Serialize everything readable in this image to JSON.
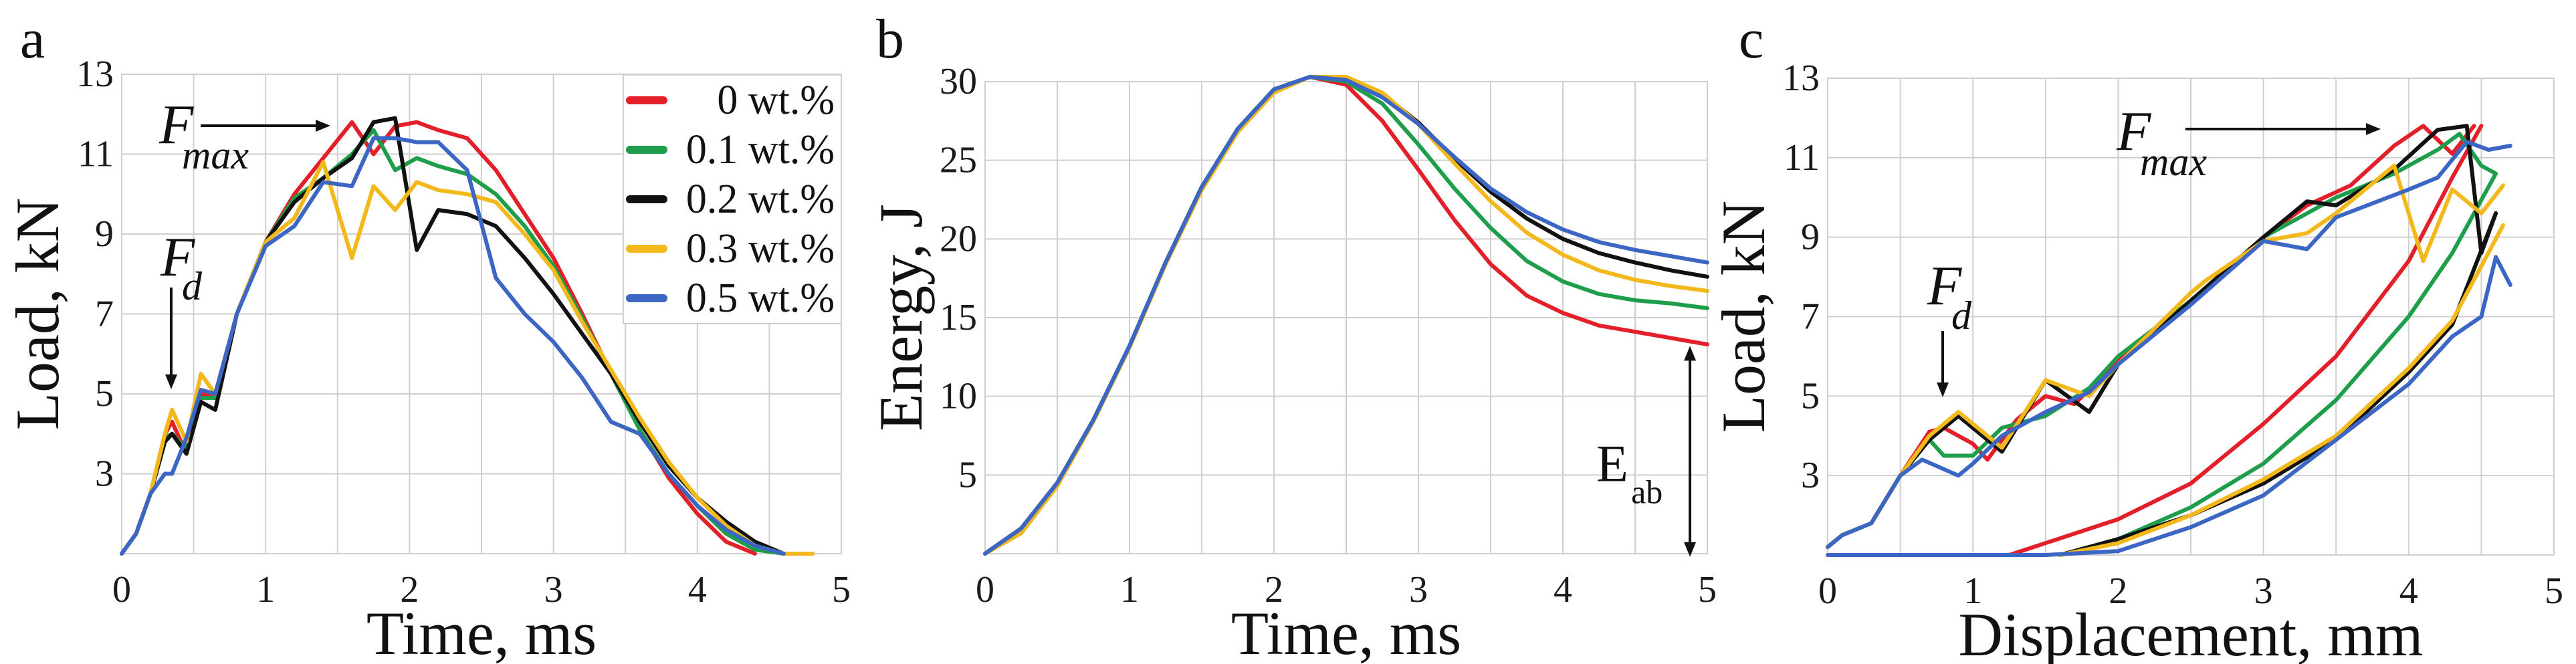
{
  "colors": {
    "0 wt.%": "#E3202A",
    "0.1 wt.%": "#1E9E4A",
    "0.2 wt.%": "#111111",
    "0.3 wt.%": "#F2B81C",
    "0.5 wt.%": "#3C66C4",
    "grid": "#cfcfcf"
  },
  "legend": {
    "items": [
      {
        "label": "0 wt.%",
        "color": "#E3202A"
      },
      {
        "label": "0.1 wt.%",
        "color": "#1E9E4A"
      },
      {
        "label": "0.2 wt.%",
        "color": "#111111"
      },
      {
        "label": "0.3 wt.%",
        "color": "#F2B81C"
      },
      {
        "label": "0.5 wt.%",
        "color": "#3C66C4"
      }
    ]
  },
  "panels": {
    "a": {
      "label": "a",
      "xlabel": "Time, ms",
      "ylabel": "Load, kN",
      "fmax_main": "F",
      "fmax_sub": "max",
      "fd_main": "F",
      "fd_sub": "d"
    },
    "b": {
      "label": "b",
      "xlabel": "Time, ms",
      "ylabel": "Energy, J",
      "eab_main": "E",
      "eab_sub": "ab"
    },
    "c": {
      "label": "c",
      "xlabel": "Displacement, mm",
      "ylabel": "Load, kN",
      "fmax_main": "F",
      "fmax_sub": "max",
      "fd_main": "F",
      "fd_sub": "d"
    }
  },
  "chart_data": [
    {
      "panel": "a",
      "type": "line",
      "title": "",
      "xlabel": "Time, ms",
      "ylabel": "Load, kN",
      "xlim": [
        0,
        5
      ],
      "ylim": [
        1,
        13
      ],
      "xticks": [
        0,
        1,
        2,
        3,
        4,
        5
      ],
      "yticks": [
        3,
        5,
        7,
        9,
        11,
        13
      ],
      "grid": true,
      "legend_position": "upper right (inside)",
      "annotations": [
        "F_max (arrow pointing to peak ~11.8 kN at ~1.6 ms)",
        "F_d (arrow pointing down to ~4.4 kN at ~0.35 ms)"
      ],
      "x": [
        0,
        0.1,
        0.2,
        0.3,
        0.35,
        0.45,
        0.55,
        0.65,
        0.8,
        1.0,
        1.2,
        1.4,
        1.6,
        1.75,
        1.9,
        2.05,
        2.2,
        2.4,
        2.6,
        2.8,
        3.0,
        3.2,
        3.4,
        3.6,
        3.8,
        4.0,
        4.2,
        4.4,
        4.6,
        4.8,
        5.0
      ],
      "series": [
        {
          "name": "0 wt.%",
          "values": [
            1.0,
            1.5,
            2.5,
            4.0,
            4.3,
            3.5,
            5.0,
            5.0,
            7.0,
            8.8,
            10.0,
            10.9,
            11.8,
            11.0,
            11.7,
            11.8,
            11.6,
            11.4,
            10.6,
            9.5,
            8.4,
            7.0,
            5.5,
            4.1,
            2.9,
            2.0,
            1.3,
            1.0,
            null,
            null,
            1.1
          ]
        },
        {
          "name": "0.1 wt.%",
          "values": [
            1.0,
            1.5,
            2.5,
            3.9,
            4.0,
            3.6,
            4.9,
            4.9,
            7.0,
            8.8,
            9.9,
            10.4,
            11.0,
            11.6,
            10.6,
            10.9,
            10.7,
            10.5,
            10.0,
            9.2,
            8.2,
            6.9,
            5.5,
            4.1,
            3.0,
            2.2,
            1.5,
            1.1,
            1.0,
            null,
            null
          ]
        },
        {
          "name": "0.2 wt.%",
          "values": [
            1.0,
            1.5,
            2.5,
            3.8,
            4.0,
            3.5,
            4.8,
            4.6,
            7.0,
            8.8,
            9.8,
            10.4,
            10.9,
            11.8,
            11.9,
            8.6,
            9.6,
            9.5,
            9.2,
            8.4,
            7.5,
            6.5,
            5.5,
            4.3,
            3.2,
            2.4,
            1.8,
            1.3,
            1.0,
            1.0,
            null
          ]
        },
        {
          "name": "0.3 wt.%",
          "values": [
            1.0,
            1.5,
            2.5,
            4.0,
            4.6,
            3.8,
            5.5,
            5.0,
            7.0,
            8.8,
            9.4,
            10.8,
            8.4,
            10.2,
            9.6,
            10.3,
            10.1,
            10.0,
            9.8,
            9.0,
            8.1,
            6.8,
            5.6,
            4.4,
            3.3,
            2.4,
            1.7,
            1.2,
            1.0,
            1.0,
            null
          ]
        },
        {
          "name": "0.5 wt.%",
          "values": [
            1.0,
            1.5,
            2.5,
            3.0,
            3.0,
            3.9,
            5.1,
            5.0,
            7.0,
            8.7,
            9.2,
            10.3,
            10.2,
            11.4,
            11.4,
            11.3,
            11.3,
            10.6,
            7.9,
            7.0,
            6.3,
            5.4,
            4.3,
            4.0,
            3.0,
            2.2,
            1.6,
            1.2,
            1.0,
            null,
            null
          ]
        }
      ]
    },
    {
      "panel": "b",
      "type": "line",
      "title": "",
      "xlabel": "Time, ms",
      "ylabel": "Energy, J",
      "xlim": [
        0,
        5
      ],
      "ylim": [
        0,
        30
      ],
      "xticks": [
        0,
        1,
        2,
        3,
        4,
        5
      ],
      "yticks": [
        5,
        10,
        15,
        20,
        25,
        30
      ],
      "grid": true,
      "annotations": [
        "E_ab (double arrow from 0 to red curve end at 5 ms)"
      ],
      "x": [
        0,
        0.25,
        0.5,
        0.75,
        1.0,
        1.25,
        1.5,
        1.75,
        2.0,
        2.25,
        2.5,
        2.75,
        3.0,
        3.25,
        3.5,
        3.75,
        4.0,
        4.25,
        4.5,
        4.75,
        5.0
      ],
      "series": [
        {
          "name": "0 wt.%",
          "values": [
            0,
            1.6,
            4.5,
            8.5,
            13.2,
            18.5,
            23.3,
            27.0,
            29.5,
            30.3,
            29.8,
            27.5,
            24.4,
            21.2,
            18.4,
            16.4,
            15.3,
            14.5,
            14.1,
            13.7,
            13.3
          ]
        },
        {
          "name": "0.1 wt.%",
          "values": [
            0,
            1.6,
            4.5,
            8.5,
            13.2,
            18.5,
            23.3,
            27.0,
            29.5,
            30.3,
            30.0,
            28.6,
            26.0,
            23.2,
            20.7,
            18.6,
            17.3,
            16.5,
            16.1,
            15.9,
            15.6
          ]
        },
        {
          "name": "0.2 wt.%",
          "values": [
            0,
            1.6,
            4.5,
            8.5,
            13.2,
            18.5,
            23.3,
            27.0,
            29.5,
            30.3,
            30.2,
            29.2,
            27.4,
            25.1,
            23.0,
            21.3,
            20.0,
            19.1,
            18.5,
            18.0,
            17.6
          ]
        },
        {
          "name": "0.3 wt.%",
          "values": [
            0,
            1.3,
            4.3,
            8.4,
            13.1,
            18.4,
            23.1,
            26.8,
            29.3,
            30.3,
            30.3,
            29.3,
            27.3,
            24.8,
            22.4,
            20.4,
            19.0,
            18.0,
            17.4,
            17.0,
            16.7
          ]
        },
        {
          "name": "0.5 wt.%",
          "values": [
            0,
            1.6,
            4.5,
            8.5,
            13.2,
            18.5,
            23.3,
            27.0,
            29.5,
            30.3,
            30.1,
            29.0,
            27.3,
            25.2,
            23.2,
            21.7,
            20.6,
            19.8,
            19.3,
            18.9,
            18.5
          ]
        }
      ]
    },
    {
      "panel": "c",
      "type": "line",
      "title": "",
      "xlabel": "Displacement, mm",
      "ylabel": "Load, kN",
      "xlim": [
        0,
        5
      ],
      "ylim": [
        1,
        13
      ],
      "xticks": [
        0,
        1,
        2,
        3,
        4,
        5
      ],
      "yticks": [
        3,
        5,
        7,
        9,
        11,
        13
      ],
      "grid": true,
      "annotations": [
        "F_max (arrow pointing to peak ~11.8 kN near 4.2 mm)",
        "F_d (arrow pointing down to ~4.3 kN near 0.8 mm)"
      ],
      "series": [
        {
          "name": "0 wt.%",
          "loading": {
            "x": [
              0,
              0.1,
              0.3,
              0.5,
              0.7,
              0.8,
              1.0,
              1.1,
              1.3,
              1.5,
              1.7,
              2.0,
              2.5,
              3.0,
              3.3,
              3.6,
              3.9,
              4.1,
              4.3,
              4.45
            ],
            "y": [
              1.2,
              1.5,
              1.8,
              3.0,
              4.1,
              4.2,
              3.8,
              3.4,
              4.4,
              5.0,
              4.8,
              5.9,
              7.4,
              9.0,
              9.8,
              10.3,
              11.3,
              11.8,
              11.1,
              11.8
            ]
          },
          "unloading": {
            "x": [
              4.5,
              4.3,
              4.0,
              3.5,
              3.0,
              2.5,
              2.0,
              1.5,
              1.25
            ],
            "y": [
              11.8,
              10.5,
              8.4,
              6.0,
              4.3,
              2.8,
              1.9,
              1.3,
              1.0
            ]
          }
        },
        {
          "name": "0.1 wt.%",
          "loading": {
            "x": [
              0,
              0.1,
              0.3,
              0.5,
              0.7,
              0.8,
              1.0,
              1.2,
              1.5,
              1.8,
              2.0,
              2.5,
              3.0,
              3.5,
              3.9,
              4.2,
              4.35,
              4.5,
              4.6
            ],
            "y": [
              1.2,
              1.5,
              1.8,
              3.0,
              3.9,
              3.5,
              3.5,
              4.2,
              4.5,
              5.2,
              6.0,
              7.4,
              9.0,
              10.0,
              10.6,
              11.2,
              11.6,
              10.8,
              10.6
            ]
          },
          "unloading": {
            "x": [
              4.6,
              4.3,
              4.0,
              3.5,
              3.0,
              2.5,
              2.0,
              1.6
            ],
            "y": [
              10.6,
              8.6,
              7.0,
              4.9,
              3.3,
              2.2,
              1.4,
              1.0
            ]
          }
        },
        {
          "name": "0.2 wt.%",
          "loading": {
            "x": [
              0,
              0.1,
              0.3,
              0.5,
              0.7,
              0.9,
              1.0,
              1.2,
              1.5,
              1.8,
              2.0,
              2.5,
              3.0,
              3.3,
              3.5,
              3.9,
              4.2,
              4.4,
              4.5,
              4.6
            ],
            "y": [
              1.2,
              1.5,
              1.8,
              3.0,
              3.9,
              4.5,
              4.2,
              3.6,
              5.4,
              4.6,
              5.8,
              7.4,
              9.0,
              9.9,
              9.8,
              10.7,
              11.7,
              11.8,
              8.6,
              9.6
            ]
          },
          "unloading": {
            "x": [
              4.6,
              4.3,
              4.0,
              3.5,
              3.0,
              2.5,
              2.0,
              1.6
            ],
            "y": [
              9.6,
              6.8,
              5.6,
              3.9,
              2.8,
              2.0,
              1.4,
              1.0
            ]
          }
        },
        {
          "name": "0.3 wt.%",
          "loading": {
            "x": [
              0,
              0.1,
              0.3,
              0.5,
              0.7,
              0.9,
              1.0,
              1.2,
              1.5,
              1.8,
              2.0,
              2.5,
              2.6,
              3.0,
              3.3,
              3.5,
              3.9,
              4.1,
              4.3,
              4.5,
              4.65
            ],
            "y": [
              1.2,
              1.5,
              1.8,
              3.0,
              4.0,
              4.6,
              4.3,
              3.7,
              5.4,
              5.0,
              5.8,
              7.6,
              7.9,
              8.9,
              9.1,
              9.6,
              10.8,
              8.4,
              10.2,
              9.6,
              10.3
            ]
          },
          "unloading": {
            "x": [
              4.65,
              4.3,
              4.0,
              3.5,
              3.0,
              2.5,
              2.0,
              1.6
            ],
            "y": [
              9.3,
              6.9,
              5.7,
              4.0,
              2.9,
              2.0,
              1.3,
              1.0
            ]
          }
        },
        {
          "name": "0.5 wt.%",
          "loading": {
            "x": [
              0,
              0.1,
              0.3,
              0.5,
              0.65,
              0.9,
              1.0,
              1.2,
              1.5,
              1.8,
              2.0,
              2.5,
              3.0,
              3.3,
              3.5,
              4.0,
              4.2,
              4.4,
              4.55,
              4.7
            ],
            "y": [
              1.2,
              1.5,
              1.8,
              3.0,
              3.4,
              3.0,
              3.3,
              4.0,
              4.6,
              5.1,
              5.8,
              7.3,
              8.9,
              8.7,
              9.5,
              10.2,
              10.5,
              11.4,
              11.2,
              11.3
            ]
          },
          "unloading": {
            "x": [
              4.7,
              4.6,
              4.5,
              4.3,
              4.0,
              3.5,
              3.0,
              2.5,
              2.0,
              1.5,
              0.5,
              0
            ],
            "y": [
              7.8,
              8.5,
              7.0,
              6.5,
              5.3,
              3.9,
              2.5,
              1.7,
              1.1,
              1.0,
              1.0,
              1.0
            ]
          }
        }
      ]
    }
  ]
}
